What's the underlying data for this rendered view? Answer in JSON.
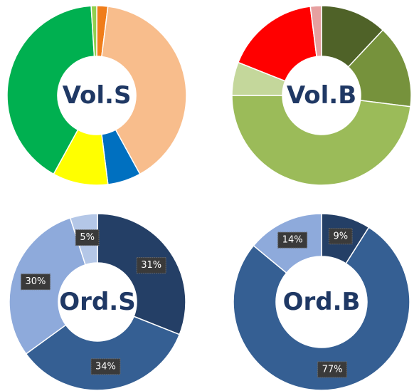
{
  "chart_data": [
    {
      "type": "pie",
      "title": "Vol.S",
      "values": [
        2,
        40,
        6,
        10,
        41,
        1
      ],
      "colors": [
        "#f07d1a",
        "#f8bd8c",
        "#0070c0",
        "#ffff00",
        "#00b050",
        "#92d050"
      ]
    },
    {
      "type": "pie",
      "title": "Vol.B",
      "values": [
        12,
        15,
        48,
        6,
        17,
        2
      ],
      "colors": [
        "#4f6228",
        "#76923c",
        "#9bbb59",
        "#c4d79b",
        "#ff0000",
        "#e6a0a0"
      ]
    },
    {
      "type": "pie",
      "title": "Ord.S",
      "values": [
        31,
        34,
        30,
        5
      ],
      "value_labels": [
        "31%",
        "34%",
        "30%",
        "5%"
      ],
      "colors": [
        "#243f66",
        "#355f93",
        "#8eaadb",
        "#b4c7e7"
      ]
    },
    {
      "type": "pie",
      "title": "Ord.B",
      "values": [
        9,
        77,
        14
      ],
      "value_labels": [
        "9%",
        "77%",
        "14%"
      ],
      "colors": [
        "#243f66",
        "#355f93",
        "#8eaadb"
      ]
    }
  ]
}
